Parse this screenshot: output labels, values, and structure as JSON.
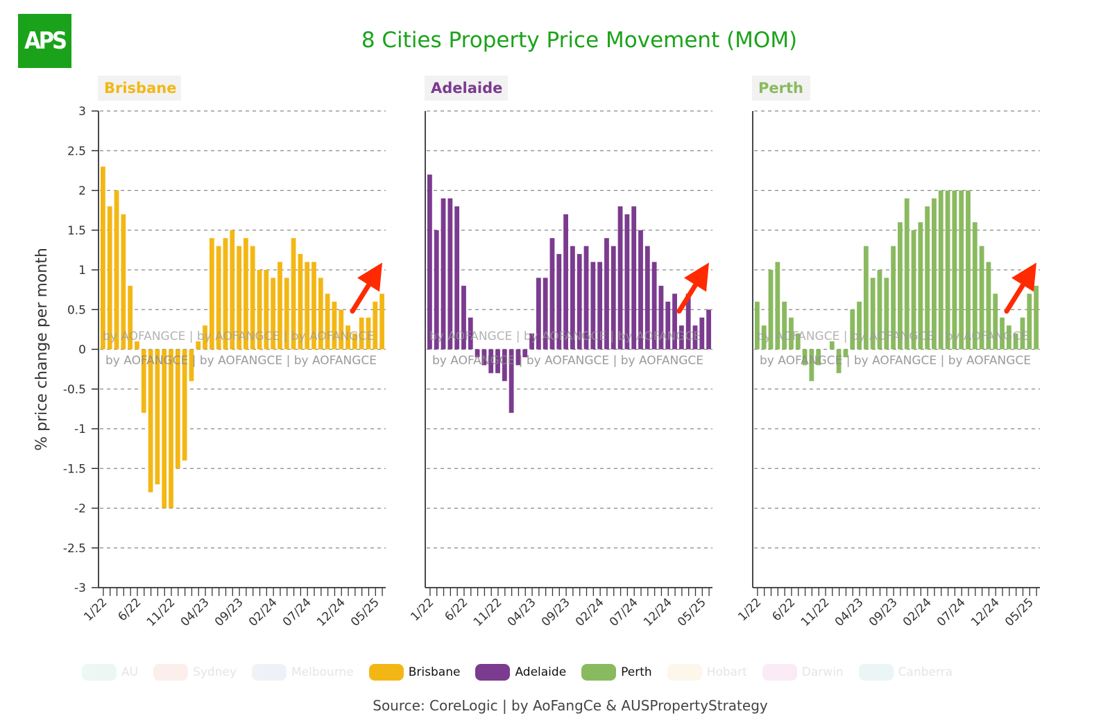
{
  "title": "8 Cities Property Price Movement (MOM)",
  "logo_text": "APS",
  "source": "Source: CoreLogic | by AoFangCe & AUSPropertyStrategy",
  "watermark": "by AOFANGCE | by AOFANGCE | by AOFANGCE",
  "legend": [
    {
      "label": "AU",
      "color": "#aadfca",
      "active": false
    },
    {
      "label": "Sydney",
      "color": "#f2b3a8",
      "active": false
    },
    {
      "label": "Melbourne",
      "color": "#b5c7e0",
      "active": false
    },
    {
      "label": "Brisbane",
      "color": "#f3b715",
      "active": true
    },
    {
      "label": "Adelaide",
      "color": "#7b3b8f",
      "active": true
    },
    {
      "label": "Perth",
      "color": "#8aba5f",
      "active": true
    },
    {
      "label": "Hobart",
      "color": "#f3d6a5",
      "active": false
    },
    {
      "label": "Darwin",
      "color": "#e9a3d6",
      "active": false
    },
    {
      "label": "Canberra",
      "color": "#a3d3d8",
      "active": false
    }
  ],
  "chart_data": {
    "type": "bar",
    "title": "8 Cities Property Price Movement (MOM)",
    "ylabel": "% price change per month",
    "ylim": [
      -3,
      3
    ],
    "yticks": [
      "3",
      "2.5",
      "2",
      "1.5",
      "1",
      "0.5",
      "0",
      "-0.5",
      "-1",
      "-1.5",
      "-2",
      "-2.5",
      "-3"
    ],
    "x_tick_labels": [
      "1/22",
      "6/22",
      "11/22",
      "04/23",
      "09/23",
      "02/24",
      "07/24",
      "12/24",
      "05/25"
    ],
    "grid": true,
    "panels": [
      {
        "name": "Brisbane",
        "color": "#f3b715",
        "values": [
          2.3,
          1.8,
          2.0,
          1.7,
          0.8,
          0.1,
          -0.8,
          -1.8,
          -1.7,
          -2.0,
          -2.0,
          -1.5,
          -1.4,
          -0.4,
          0.1,
          0.3,
          1.4,
          1.3,
          1.4,
          1.5,
          1.3,
          1.4,
          1.3,
          1.0,
          1.0,
          0.9,
          1.1,
          0.9,
          1.4,
          1.2,
          1.1,
          1.1,
          0.9,
          0.7,
          0.6,
          0.5,
          0.3,
          0.2,
          0.4,
          0.4,
          0.6,
          0.7
        ]
      },
      {
        "name": "Adelaide",
        "color": "#7b3b8f",
        "values": [
          2.2,
          1.5,
          1.9,
          1.9,
          1.8,
          0.8,
          0.4,
          -0.1,
          -0.2,
          -0.3,
          -0.3,
          -0.4,
          -0.8,
          -0.2,
          -0.1,
          0.2,
          0.9,
          0.9,
          1.4,
          1.2,
          1.7,
          1.3,
          1.2,
          1.3,
          1.1,
          1.1,
          1.4,
          1.3,
          1.8,
          1.7,
          1.8,
          1.5,
          1.3,
          1.1,
          0.8,
          0.6,
          0.7,
          0.3,
          0.7,
          0.3,
          0.4,
          0.5
        ]
      },
      {
        "name": "Perth",
        "color": "#8aba5f",
        "values": [
          0.6,
          0.3,
          1.0,
          1.1,
          0.6,
          0.4,
          0.2,
          -0.2,
          -0.4,
          -0.2,
          0.0,
          0.1,
          -0.3,
          -0.1,
          0.5,
          0.6,
          1.3,
          0.9,
          1.0,
          0.9,
          1.3,
          1.6,
          1.9,
          1.5,
          1.6,
          1.8,
          1.9,
          2.0,
          2.0,
          2.0,
          2.0,
          2.0,
          1.6,
          1.3,
          1.1,
          0.7,
          0.4,
          0.3,
          0.2,
          0.4,
          0.7,
          0.8
        ]
      }
    ]
  }
}
